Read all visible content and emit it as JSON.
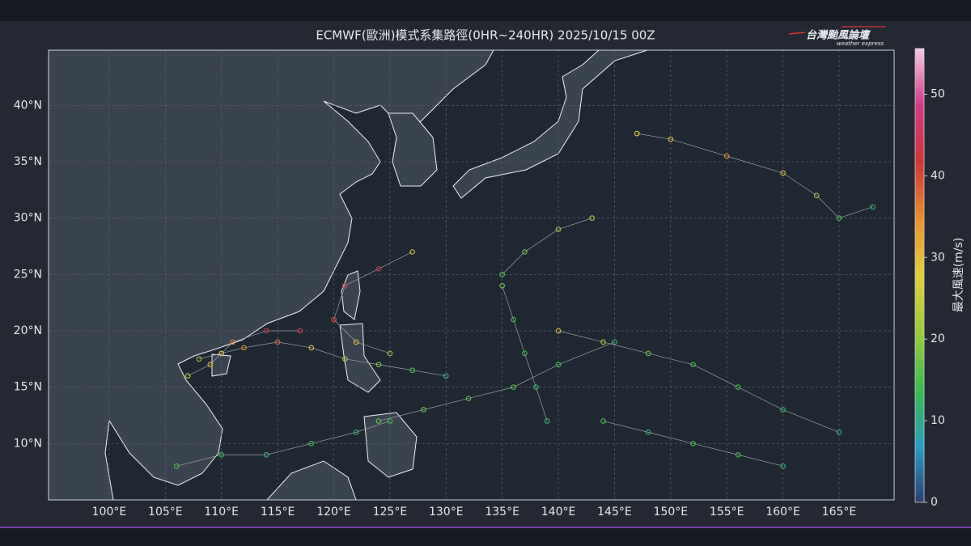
{
  "title": "ECMWF(歐洲)模式系集路徑(0HR~240HR) 2025/10/15 00Z",
  "logo": {
    "name": "台灣颱風論壇",
    "tagline": "weather express"
  },
  "map": {
    "xlim": [
      94.6,
      169.9
    ],
    "ylim": [
      5,
      44.9
    ],
    "xticks": [
      {
        "value": 100,
        "label": "100°E"
      },
      {
        "value": 105,
        "label": "105°E"
      },
      {
        "value": 110,
        "label": "110°E"
      },
      {
        "value": 115,
        "label": "115°E"
      },
      {
        "value": 120,
        "label": "120°E"
      },
      {
        "value": 125,
        "label": "125°E"
      },
      {
        "value": 130,
        "label": "130°E"
      },
      {
        "value": 135,
        "label": "135°E"
      },
      {
        "value": 140,
        "label": "140°E"
      },
      {
        "value": 145,
        "label": "145°E"
      },
      {
        "value": 150,
        "label": "150°E"
      },
      {
        "value": 155,
        "label": "155°E"
      },
      {
        "value": 160,
        "label": "160°E"
      },
      {
        "value": 165,
        "label": "165°E"
      }
    ],
    "yticks": [
      {
        "value": 10,
        "label": "10°N"
      },
      {
        "value": 15,
        "label": "15°N"
      },
      {
        "value": 20,
        "label": "20°N"
      },
      {
        "value": 25,
        "label": "25°N"
      },
      {
        "value": 30,
        "label": "30°N"
      },
      {
        "value": 35,
        "label": "35°N"
      },
      {
        "value": 40,
        "label": "40°N"
      }
    ],
    "grid": true,
    "tracks": [
      {
        "lon": [
          130,
          127,
          124,
          121,
          118,
          115,
          112,
          110,
          108
        ],
        "lat": [
          16,
          16.5,
          17,
          17.5,
          18.5,
          19,
          18.5,
          18,
          17.5
        ],
        "wind": [
          12,
          15,
          18,
          22,
          30,
          38,
          35,
          28,
          22
        ]
      },
      {
        "lon": [
          125,
          122,
          120,
          121,
          124,
          127
        ],
        "lat": [
          18,
          19,
          21,
          24,
          25.5,
          27
        ],
        "wind": [
          20,
          30,
          40,
          45,
          42,
          30
        ]
      },
      {
        "lon": [
          145,
          140,
          136,
          132,
          128,
          124
        ],
        "lat": [
          19,
          17,
          15,
          14,
          13,
          12
        ],
        "wind": [
          12,
          14,
          15,
          16,
          18,
          16
        ]
      },
      {
        "lon": [
          168,
          165,
          163,
          160,
          155,
          150,
          147
        ],
        "lat": [
          31,
          30,
          32,
          34,
          35.5,
          37,
          37.5
        ],
        "wind": [
          12,
          14,
          20,
          30,
          35,
          30,
          28
        ]
      },
      {
        "lon": [
          160,
          156,
          152,
          148,
          144
        ],
        "lat": [
          8,
          9,
          10,
          11,
          12
        ],
        "wind": [
          12,
          14,
          15,
          12,
          15
        ]
      },
      {
        "lon": [
          140,
          144,
          148,
          152,
          156,
          160,
          165
        ],
        "lat": [
          20,
          19,
          18,
          17,
          15,
          13,
          11
        ],
        "wind": [
          30,
          22,
          18,
          15,
          14,
          13,
          12
        ]
      },
      {
        "lon": [
          135,
          136,
          137,
          138,
          139
        ],
        "lat": [
          24,
          21,
          18,
          15,
          12
        ],
        "wind": [
          18,
          15,
          14,
          13,
          12
        ]
      },
      {
        "lon": [
          125,
          122,
          118,
          114,
          110,
          106
        ],
        "lat": [
          12,
          11,
          10,
          9,
          9,
          8
        ],
        "wind": [
          14,
          12,
          14,
          12,
          13,
          15
        ]
      },
      {
        "lon": [
          143,
          140,
          137,
          135
        ],
        "lat": [
          30,
          29,
          27,
          25
        ],
        "wind": [
          22,
          20,
          18,
          16
        ]
      },
      {
        "lon": [
          117,
          114,
          111,
          109,
          107
        ],
        "lat": [
          20,
          20,
          19,
          17,
          16
        ],
        "wind": [
          45,
          42,
          36,
          30,
          24
        ]
      }
    ]
  },
  "colorbar": {
    "label": "最大風速(m/s)",
    "clim": [
      0,
      55.6
    ],
    "ticks": [
      0,
      10,
      20,
      30,
      40,
      50
    ],
    "colormap": [
      "#2b3f73",
      "#2a9fc0",
      "#3dbb4a",
      "#9ccc3a",
      "#e3d03a",
      "#e8902f",
      "#d13434",
      "#d23a86",
      "#f7c9e6"
    ]
  }
}
